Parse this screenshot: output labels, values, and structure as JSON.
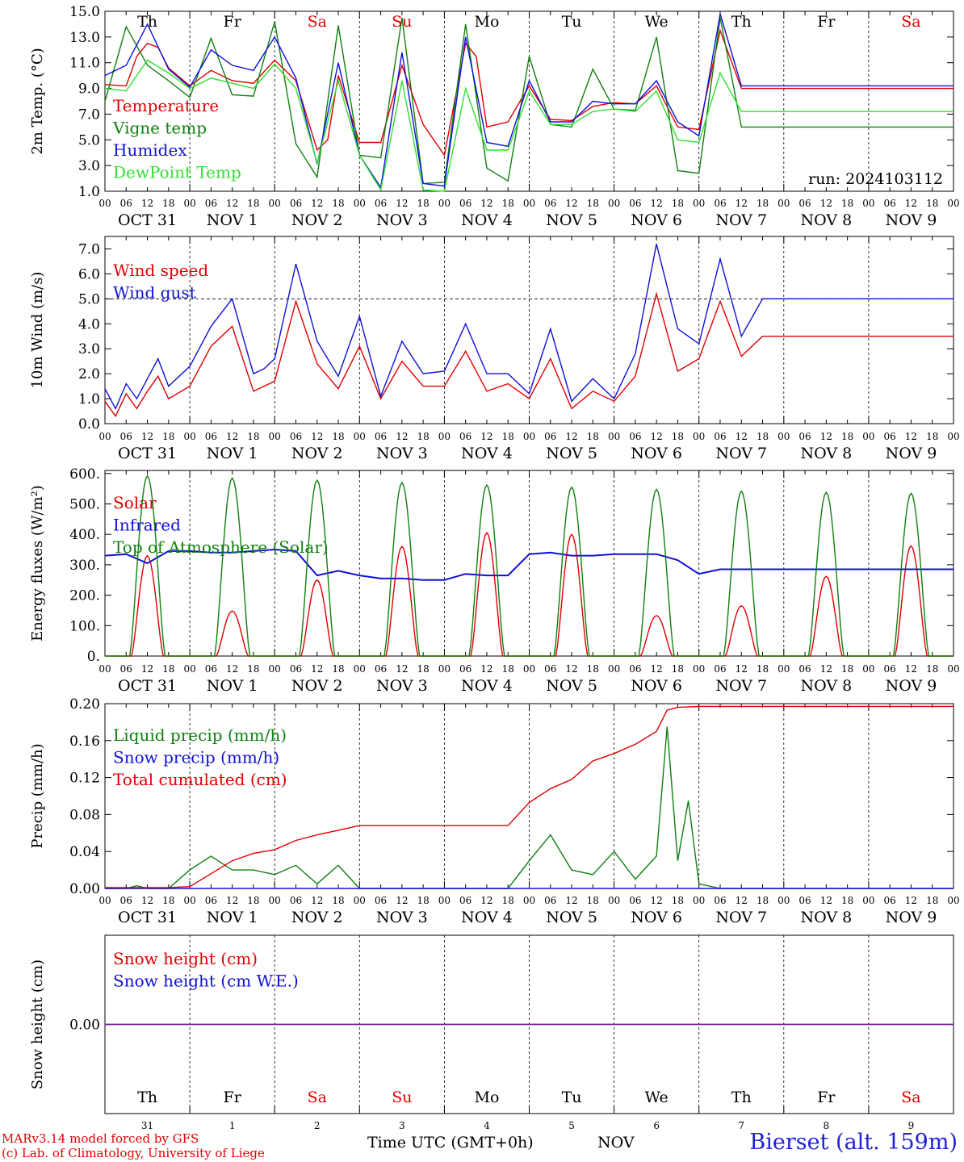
{
  "footer": {
    "model": "MARv3.14 model forced by GFS",
    "lab": "(c) Lab. of Climatology, University of Liege",
    "xlabel": "Time UTC (GMT+0h)",
    "month": "NOV",
    "station": "Bierset (alt. 159m)"
  },
  "axis": {
    "hours": [
      "00",
      "06",
      "12",
      "18"
    ],
    "day_labels": [
      "OCT 31",
      "NOV  1",
      "NOV  2",
      "NOV  3",
      "NOV  4",
      "NOV  5",
      "NOV  6",
      "NOV  7",
      "NOV  8",
      "NOV  9"
    ],
    "weekdays": [
      "Th",
      "Fr",
      "Sa",
      "Su",
      "Mo",
      "Tu",
      "We",
      "Th",
      "Fr",
      "Sa"
    ],
    "weekend": [
      false,
      false,
      true,
      true,
      false,
      false,
      false,
      false,
      false,
      true
    ],
    "bottom_days": [
      "31",
      "1",
      "2",
      "3",
      "4",
      "5",
      "6",
      "7",
      "8",
      "9"
    ]
  },
  "colors": {
    "red": "#e00000",
    "green": "#108010",
    "blue": "#1010d8",
    "lightgreen": "#30e030",
    "weekend": "#e00000",
    "purple": "#702090"
  },
  "chart_data": [
    {
      "type": "line",
      "ylabel": "2m Temp. (°C)",
      "ylim": [
        1.0,
        15.0
      ],
      "yticks": [
        1.0,
        3.0,
        5.0,
        7.0,
        9.0,
        11.0,
        13.0,
        15.0
      ],
      "x_unit": "hours since 2024-10-31 00 UTC",
      "run": "run: 2024103112",
      "series": [
        {
          "name": "Temperature",
          "color": "red",
          "x": [
            0,
            6,
            9,
            12,
            15,
            18,
            24,
            30,
            36,
            42,
            48,
            54,
            60,
            63,
            66,
            72,
            78,
            84,
            90,
            96,
            102,
            105,
            108,
            114,
            120,
            126,
            132,
            138,
            144,
            150,
            156,
            162,
            168,
            174,
            180,
            186,
            192,
            198,
            204,
            210,
            216,
            219,
            222,
            225,
            228,
            234,
            240
          ],
          "y": [
            9.3,
            9.2,
            11.5,
            12.5,
            12.2,
            10.6,
            9.2,
            10.4,
            9.6,
            9.4,
            11.2,
            9.6,
            4.2,
            5.0,
            10.0,
            4.8,
            4.8,
            10.8,
            6.2,
            3.8,
            12.5,
            11.5,
            6.0,
            6.4,
            9.2,
            6.6,
            6.5,
            7.6,
            7.9,
            7.8,
            9.2,
            6.0,
            5.8,
            13.5,
            9.0,
            9.0,
            9.0,
            9.0,
            9.0,
            9.0,
            9.0,
            9.0,
            9.0,
            9.0,
            9.0,
            9.0,
            9.0
          ]
        },
        {
          "name": "Vigne temp",
          "color": "green",
          "x": [
            0,
            6,
            12,
            18,
            24,
            30,
            36,
            42,
            48,
            54,
            60,
            66,
            72,
            78,
            84,
            90,
            96,
            102,
            108,
            114,
            120,
            126,
            132,
            138,
            144,
            150,
            156,
            162,
            168,
            174,
            180,
            186,
            192,
            198,
            204,
            210,
            216,
            219,
            222,
            225,
            228,
            234,
            240
          ],
          "y": [
            8.0,
            13.8,
            10.8,
            9.6,
            8.3,
            12.9,
            8.5,
            8.4,
            14.2,
            4.7,
            2.1,
            13.9,
            3.8,
            3.6,
            14.5,
            1.6,
            1.7,
            14.0,
            2.8,
            1.8,
            11.5,
            6.2,
            6.0,
            10.5,
            7.4,
            7.3,
            13.0,
            2.6,
            2.4,
            14.5,
            6.0,
            6.0,
            6.0,
            6.0,
            6.0,
            6.0,
            6.0,
            6.0,
            6.0,
            6.0,
            6.0,
            6.0,
            6.0
          ]
        },
        {
          "name": "Humidex",
          "color": "blue",
          "x": [
            0,
            6,
            12,
            18,
            24,
            30,
            36,
            42,
            48,
            54,
            60,
            66,
            72,
            78,
            84,
            90,
            96,
            102,
            108,
            114,
            120,
            126,
            132,
            138,
            144,
            150,
            156,
            162,
            168,
            174,
            180,
            186,
            192,
            198,
            204,
            210,
            216,
            219,
            222,
            225,
            228,
            234,
            240
          ],
          "y": [
            10.0,
            10.8,
            14.0,
            10.5,
            9.1,
            12.0,
            10.8,
            10.4,
            13.0,
            9.8,
            3.1,
            11.0,
            3.8,
            1.3,
            11.8,
            1.6,
            1.4,
            13.0,
            4.8,
            4.5,
            9.6,
            6.4,
            6.4,
            8.0,
            7.8,
            7.8,
            9.6,
            6.4,
            5.3,
            14.8,
            9.2,
            9.2,
            9.2,
            9.2,
            9.2,
            9.2,
            9.2,
            9.2,
            9.2,
            9.2,
            9.2,
            9.2,
            9.2
          ]
        },
        {
          "name": "DewPoint Temp",
          "color": "lightgreen",
          "x": [
            0,
            6,
            12,
            18,
            24,
            30,
            36,
            42,
            48,
            54,
            60,
            66,
            72,
            78,
            84,
            90,
            96,
            102,
            108,
            114,
            120,
            126,
            132,
            138,
            144,
            150,
            156,
            162,
            168,
            174,
            180,
            186,
            192,
            198,
            204,
            210,
            216,
            219,
            222,
            225,
            228,
            234,
            240
          ],
          "y": [
            9.0,
            8.8,
            11.2,
            10.2,
            9.0,
            9.8,
            9.4,
            9.0,
            10.9,
            9.0,
            3.2,
            9.6,
            3.8,
            1.1,
            9.6,
            1.1,
            1.0,
            9.0,
            4.2,
            4.2,
            8.8,
            6.2,
            6.2,
            7.2,
            7.4,
            7.2,
            8.8,
            5.0,
            4.8,
            10.2,
            7.2,
            7.2,
            7.2,
            7.2,
            7.2,
            7.2,
            7.2,
            7.2,
            7.2,
            7.2,
            7.2,
            7.2,
            7.2
          ]
        }
      ]
    },
    {
      "type": "line",
      "ylabel": "10m Wind (m/s)",
      "ylim": [
        0.0,
        7.5
      ],
      "yticks": [
        0.0,
        1.0,
        2.0,
        3.0,
        4.0,
        5.0,
        6.0,
        7.0
      ],
      "reference_line": 5.0,
      "x_unit": "hours since 2024-10-31 00 UTC",
      "series": [
        {
          "name": "Wind speed",
          "color": "red",
          "x": [
            0,
            3,
            6,
            9,
            12,
            15,
            18,
            24,
            30,
            36,
            42,
            45,
            48,
            54,
            60,
            66,
            72,
            78,
            84,
            90,
            96,
            102,
            108,
            114,
            120,
            126,
            132,
            138,
            144,
            150,
            156,
            162,
            168,
            174,
            180,
            186,
            192,
            198,
            204,
            210,
            216,
            222,
            228,
            234,
            240
          ],
          "y": [
            0.9,
            0.3,
            1.2,
            0.6,
            1.3,
            1.9,
            1.0,
            1.5,
            3.1,
            3.9,
            1.3,
            1.5,
            1.7,
            4.9,
            2.4,
            1.4,
            3.1,
            1.0,
            2.5,
            1.5,
            1.5,
            2.9,
            1.3,
            1.6,
            1.0,
            2.6,
            0.6,
            1.3,
            0.9,
            1.9,
            5.2,
            2.1,
            2.6,
            4.9,
            2.7,
            3.5,
            3.5,
            3.5,
            3.5,
            3.5,
            3.5,
            3.5,
            3.5,
            3.5,
            3.5
          ]
        },
        {
          "name": "Wind gust",
          "color": "blue",
          "x": [
            0,
            3,
            6,
            9,
            12,
            15,
            18,
            24,
            30,
            36,
            42,
            45,
            48,
            54,
            60,
            66,
            72,
            78,
            84,
            90,
            96,
            102,
            108,
            114,
            120,
            126,
            132,
            138,
            144,
            150,
            156,
            162,
            168,
            174,
            180,
            186,
            192,
            198,
            204,
            210,
            216,
            222,
            228,
            234,
            240
          ],
          "y": [
            1.4,
            0.6,
            1.6,
            1.0,
            1.8,
            2.6,
            1.5,
            2.3,
            3.9,
            5.0,
            2.0,
            2.2,
            2.6,
            6.4,
            3.3,
            1.9,
            4.3,
            1.1,
            3.3,
            2.0,
            2.1,
            4.0,
            2.0,
            2.0,
            1.2,
            3.8,
            0.9,
            1.8,
            1.0,
            2.8,
            7.2,
            3.8,
            3.2,
            6.6,
            3.5,
            5.0,
            5.0,
            5.0,
            5.0,
            5.0,
            5.0,
            5.0,
            5.0,
            5.0,
            5.0
          ]
        }
      ]
    },
    {
      "type": "line",
      "ylabel": "Energy fluxes (W/m²)",
      "ylim": [
        0,
        610
      ],
      "yticks": [
        0,
        100,
        200,
        300,
        400,
        500,
        600
      ],
      "ytick_labels": [
        "0.",
        "100.",
        "200.",
        "300.",
        "400.",
        "500.",
        "600."
      ],
      "x_unit": "hours since 2024-10-31 00 UTC",
      "series": [
        {
          "name": "Solar",
          "color": "red",
          "peaks": [
            330,
            148,
            250,
            360,
            405,
            400,
            133,
            165,
            262,
            362
          ]
        },
        {
          "name": "Infrared",
          "color": "blue",
          "x": [
            0,
            6,
            12,
            18,
            24,
            30,
            36,
            42,
            48,
            54,
            60,
            66,
            72,
            78,
            84,
            90,
            96,
            102,
            108,
            114,
            120,
            126,
            132,
            138,
            144,
            150,
            156,
            162,
            168,
            174,
            180,
            186,
            192,
            198,
            204,
            210,
            216,
            222,
            228,
            234,
            240
          ],
          "y": [
            330,
            335,
            305,
            345,
            345,
            340,
            340,
            345,
            350,
            345,
            265,
            280,
            265,
            255,
            255,
            250,
            250,
            270,
            265,
            265,
            335,
            340,
            330,
            330,
            335,
            335,
            335,
            315,
            270,
            285,
            285,
            285,
            285,
            285,
            285,
            285,
            285,
            285,
            285,
            285,
            285
          ]
        },
        {
          "name": "Top of Atmosphere (Solar)",
          "color": "green",
          "peaks": [
            592,
            585,
            578,
            570,
            562,
            555,
            548,
            542,
            538,
            535
          ]
        }
      ]
    },
    {
      "type": "line",
      "ylabel": "Precip (mm/h)",
      "ylim": [
        0.0,
        0.2
      ],
      "yticks": [
        0.0,
        0.04,
        0.08,
        0.12,
        0.16,
        0.2
      ],
      "ytick_labels": [
        "0.00",
        "0.04",
        "0.08",
        "0.12",
        "0.16",
        "0.20"
      ],
      "x_unit": "hours since 2024-10-31 00 UTC",
      "series": [
        {
          "name": "Liquid precip (mm/h)",
          "color": "green",
          "x": [
            0,
            6,
            9,
            12,
            18,
            24,
            30,
            36,
            42,
            48,
            54,
            60,
            66,
            72,
            78,
            84,
            90,
            96,
            102,
            108,
            114,
            120,
            126,
            132,
            138,
            144,
            150,
            156,
            159,
            162,
            165,
            168,
            174,
            180,
            186,
            192,
            198,
            204,
            210,
            216,
            222,
            228,
            234,
            240
          ],
          "y": [
            0,
            0,
            0.003,
            0,
            0,
            0.02,
            0.035,
            0.02,
            0.02,
            0.015,
            0.025,
            0.005,
            0.025,
            0,
            0,
            0,
            0,
            0,
            0,
            0,
            0,
            0.03,
            0.058,
            0.02,
            0.015,
            0.04,
            0.01,
            0.035,
            0.175,
            0.03,
            0.095,
            0.005,
            0,
            0,
            0,
            0,
            0,
            0,
            0,
            0,
            0,
            0,
            0,
            0
          ]
        },
        {
          "name": "Snow precip (mm/h)",
          "color": "blue",
          "x": [
            0,
            240
          ],
          "y": [
            0,
            0
          ]
        },
        {
          "name": "Total cumulated (cm)",
          "color": "red",
          "x": [
            0,
            6,
            12,
            18,
            24,
            30,
            36,
            42,
            48,
            54,
            60,
            66,
            72,
            78,
            84,
            90,
            96,
            102,
            108,
            114,
            120,
            126,
            132,
            138,
            144,
            150,
            156,
            159,
            162,
            168,
            174,
            180,
            186,
            192,
            198,
            204,
            210,
            216,
            222,
            228,
            234,
            240
          ],
          "y": [
            0.001,
            0.001,
            0.001,
            0.001,
            0.002,
            0.016,
            0.03,
            0.038,
            0.042,
            0.052,
            0.058,
            0.063,
            0.068,
            0.068,
            0.068,
            0.068,
            0.068,
            0.068,
            0.068,
            0.068,
            0.093,
            0.108,
            0.118,
            0.138,
            0.146,
            0.156,
            0.17,
            0.193,
            0.196,
            0.197,
            0.197,
            0.197,
            0.197,
            0.197,
            0.197,
            0.197,
            0.197,
            0.197,
            0.197,
            0.197,
            0.197,
            0.197
          ]
        }
      ]
    },
    {
      "type": "line",
      "ylabel": "Snow height (cm)",
      "ylim": [
        -1,
        1
      ],
      "yticks": [
        0.0
      ],
      "ytick_labels": [
        "0.00"
      ],
      "x_unit": "hours since 2024-10-31 00 UTC",
      "series": [
        {
          "name": "Snow height (cm)",
          "color": "red",
          "x": [
            0,
            240
          ],
          "y": [
            0,
            0
          ]
        },
        {
          "name": "Snow height (cm W.E.)",
          "color": "blue",
          "x": [
            0,
            240
          ],
          "y": [
            0,
            0
          ]
        }
      ]
    }
  ]
}
